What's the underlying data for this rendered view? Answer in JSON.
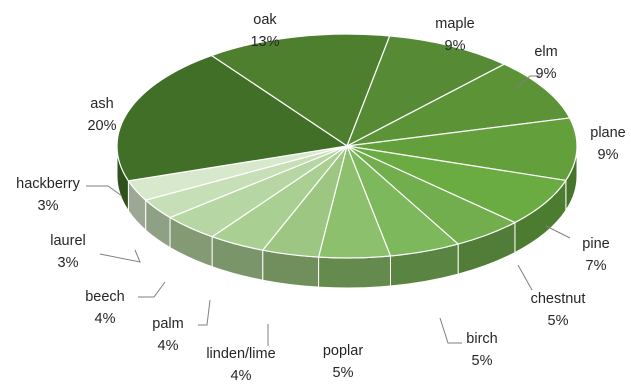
{
  "chart_data": {
    "type": "pie",
    "style": "3d",
    "legend": "none",
    "data_labels": "outside with leader lines",
    "slices": [
      {
        "label": "oak",
        "value": 13,
        "display": "13%",
        "color": "#4e7f2f"
      },
      {
        "label": "maple",
        "value": 9,
        "display": "9%",
        "color": "#568a34"
      },
      {
        "label": "elm",
        "value": 9,
        "display": "9%",
        "color": "#5c9336"
      },
      {
        "label": "plane",
        "value": 9,
        "display": "9%",
        "color": "#63a03c"
      },
      {
        "label": "pine",
        "value": 7,
        "display": "7%",
        "color": "#6aac42"
      },
      {
        "label": "chestnut",
        "value": 5,
        "display": "5%",
        "color": "#72ad4e"
      },
      {
        "label": "birch",
        "value": 5,
        "display": "5%",
        "color": "#7db85c"
      },
      {
        "label": "poplar",
        "value": 5,
        "display": "5%",
        "color": "#8cc06d"
      },
      {
        "label": "linden/lime",
        "value": 4,
        "display": "4%",
        "color": "#9cc681"
      },
      {
        "label": "palm",
        "value": 4,
        "display": "4%",
        "color": "#a9cf93"
      },
      {
        "label": "beech",
        "value": 4,
        "display": "4%",
        "color": "#b6d6a3"
      },
      {
        "label": "laurel",
        "value": 3,
        "display": "3%",
        "color": "#c6dfb7"
      },
      {
        "label": "hackberry",
        "value": 3,
        "display": "3%",
        "color": "#d8e8cd"
      },
      {
        "label": "ash",
        "value": 20,
        "display": "20%",
        "color": "#426f27"
      }
    ]
  }
}
